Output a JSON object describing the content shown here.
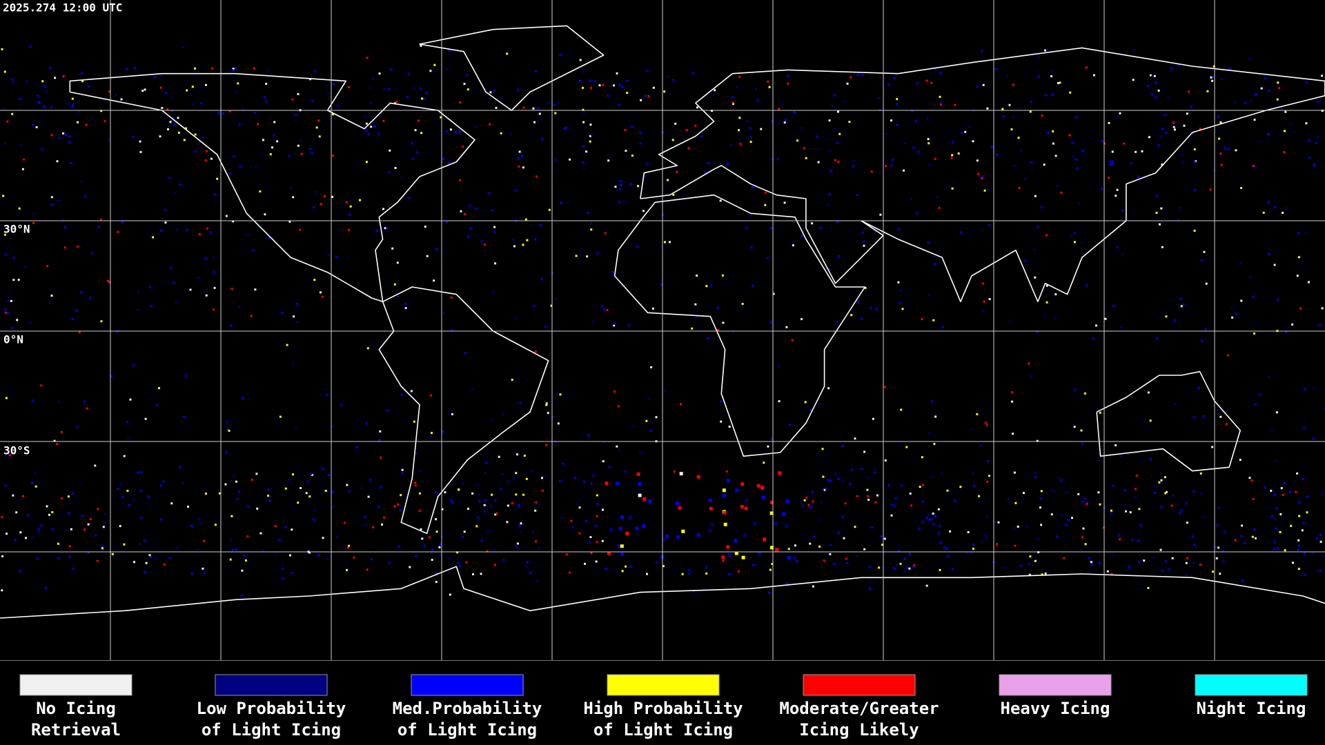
{
  "header": {
    "timestamp": "2025.274 12:00 UTC"
  },
  "map": {
    "latitude_labels": [
      "30°N",
      "0°N",
      "30°S"
    ]
  },
  "legend": {
    "items": [
      {
        "label": [
          "No Icing",
          "Retrieval"
        ],
        "color": "#f0f0f0"
      },
      {
        "label": [
          "Low Probability",
          "of Light Icing"
        ],
        "color": "#000080"
      },
      {
        "label": [
          "Med.Probability",
          "of Light Icing"
        ],
        "color": "#0000ff"
      },
      {
        "label": [
          "High Probability",
          "of Light Icing"
        ],
        "color": "#ffff00"
      },
      {
        "label": [
          "Moderate/Greater",
          "Icing Likely"
        ],
        "color": "#ff0000"
      },
      {
        "label": [
          "Heavy Icing"
        ],
        "color": "#e8a0e8"
      },
      {
        "label": [
          "Night Icing"
        ],
        "color": "#00ffff"
      }
    ]
  }
}
